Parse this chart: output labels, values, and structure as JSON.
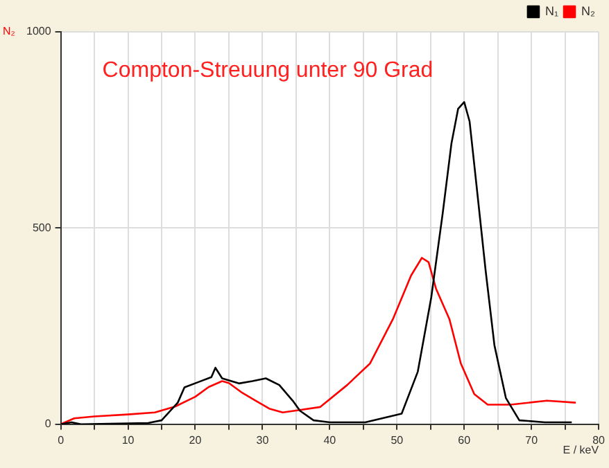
{
  "chart_data": {
    "type": "line",
    "title": "Compton-Streuung unter 90 Grad",
    "xlabel": "E / keV",
    "ylabel": "N₂",
    "xlim": [
      0,
      80
    ],
    "ylim": [
      0,
      1000
    ],
    "xticks": [
      0,
      {
        "value": 5,
        "label": null
      },
      10,
      {
        "value": 15,
        "label": null
      },
      20,
      {
        "value": 25,
        "label": null
      },
      30,
      {
        "value": 35,
        "label": null
      },
      40,
      {
        "value": 45,
        "label": null
      },
      50,
      {
        "value": 55,
        "label": null
      },
      60,
      {
        "value": 65,
        "label": null
      },
      70,
      {
        "value": 75,
        "label": null
      },
      80
    ],
    "yticks": [
      0,
      500,
      1000
    ],
    "grid": true,
    "legend": "top right",
    "marker": "none",
    "line_style": "solid",
    "series": [
      {
        "name": "N₁",
        "color": "#000000",
        "x": [
          0,
          1.6,
          3,
          13,
          15,
          17.4,
          18.4,
          20.4,
          22.4,
          23,
          24,
          26.5,
          28.5,
          30.5,
          32.5,
          34.5,
          35.6,
          37.6,
          40,
          45.3,
          50.7,
          53.1,
          55.1,
          56.8,
          58.1,
          59.1,
          60,
          60.8,
          61.8,
          63.2,
          64.5,
          66.2,
          68.2,
          72,
          76
        ],
        "values": [
          0,
          5,
          0,
          3,
          10,
          55,
          94,
          107,
          120,
          144,
          117,
          104,
          110,
          117,
          100,
          60,
          34,
          10,
          5,
          5,
          27,
          134,
          323,
          537,
          715,
          804,
          821,
          772,
          614,
          390,
          201,
          67,
          10,
          5,
          5
        ]
      },
      {
        "name": "N₂",
        "color": "#ff0000",
        "x": [
          0,
          2,
          5,
          10,
          14,
          17,
          20,
          22,
          24,
          25,
          27,
          29,
          31,
          33,
          35,
          38.6,
          42.6,
          46,
          49.4,
          52.1,
          53.7,
          54.7,
          55.8,
          57.8,
          59.5,
          61.5,
          63.5,
          66.9,
          72.3,
          76.6
        ],
        "values": [
          0,
          15,
          20,
          25,
          30,
          45,
          70,
          95,
          110,
          105,
          80,
          60,
          40,
          30,
          35,
          44,
          100,
          155,
          268,
          379,
          424,
          413,
          346,
          268,
          155,
          77,
          50,
          50,
          60,
          55
        ]
      }
    ]
  }
}
